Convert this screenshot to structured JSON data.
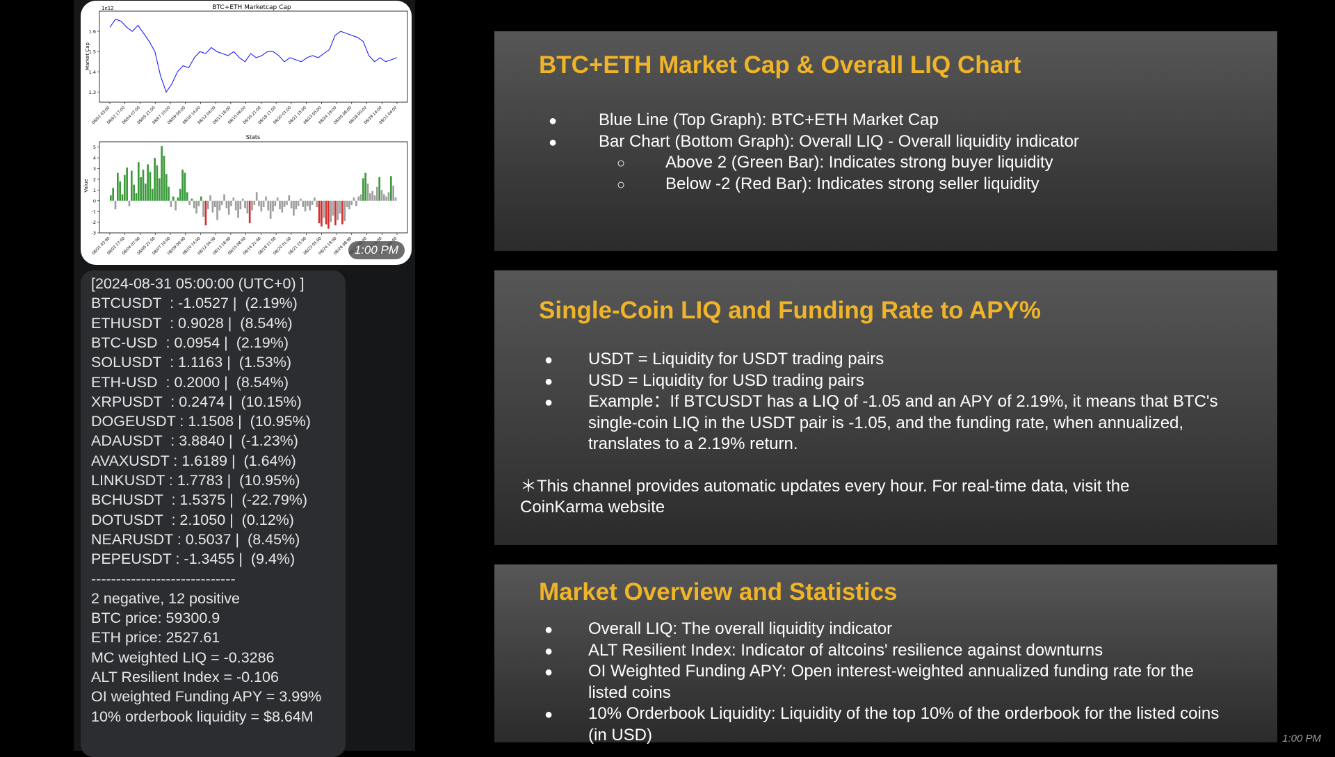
{
  "chart_image": {
    "timestamp": "1:00 PM",
    "chart_data": [
      {
        "type": "line",
        "title": "BTC+ETH Marketcap Cap",
        "ylabel": "Market Cap",
        "y_exponent_label": "1e12",
        "yticks": [
          "1.3",
          "1.4",
          "1.5",
          "1.6"
        ],
        "ylim": [
          1.25,
          1.7
        ],
        "xticks": [
          "08/01 03:00",
          "08/02 17:00",
          "08/04 07:00",
          "08/05 21:00",
          "08/07 10:00",
          "08/09 00:00",
          "08/10 14:00",
          "08/12 04:00",
          "08/13 18:00",
          "08/15 08:00",
          "08/16 21:00",
          "08/18 11:00",
          "08/20 01:00",
          "08/21 15:00",
          "08/23 05:00",
          "08/24 19:00",
          "08/26 08:00",
          "08/28 00:00",
          "08/29 14:00",
          "08/31 04:00"
        ],
        "series": [
          {
            "values": [
              1.62,
              1.66,
              1.65,
              1.62,
              1.6,
              1.63,
              1.59,
              1.55,
              1.5,
              1.38,
              1.3,
              1.34,
              1.4,
              1.43,
              1.42,
              1.47,
              1.5,
              1.49,
              1.52,
              1.5,
              1.49,
              1.48,
              1.5,
              1.47,
              1.45,
              1.49,
              1.47,
              1.48,
              1.5,
              1.5,
              1.48,
              1.45,
              1.47,
              1.46,
              1.45,
              1.47,
              1.48,
              1.47,
              1.49,
              1.51,
              1.58,
              1.6,
              1.59,
              1.58,
              1.57,
              1.55,
              1.48,
              1.45,
              1.47,
              1.45,
              1.46,
              1.47
            ]
          }
        ],
        "color": "#1f1fff"
      },
      {
        "type": "bar",
        "title": "Stats",
        "ylabel": "Value",
        "yticks": [
          "-3",
          "-2",
          "-1",
          "0",
          "1",
          "2",
          "3",
          "4",
          "5"
        ],
        "ylim": [
          -3,
          5.5
        ],
        "xticks": [
          "08/01 03:00",
          "08/02 17:00",
          "08/04 07:00",
          "08/05 21:00",
          "08/07 10:00",
          "08/09 00:00",
          "08/10 14:00",
          "08/12 04:00",
          "08/13 18:00",
          "08/15 08:00",
          "08/16 21:00",
          "08/18 11:00",
          "08/20 01:00",
          "08/21 15:00",
          "08/23 05:00",
          "08/24 19:00",
          "08/26 08:00",
          "08/28 00:00",
          "08/29 14:00",
          "08/31 04:00"
        ],
        "values": [
          0.5,
          1.2,
          -0.8,
          2.6,
          1.8,
          0.6,
          2.4,
          3.1,
          -0.5,
          2.8,
          1.5,
          0.7,
          3.6,
          2.2,
          2.9,
          1.6,
          3.4,
          2.7,
          1.1,
          4.0,
          3.3,
          2.1,
          5.1,
          4.2,
          2.5,
          1.3,
          -0.6,
          0.4,
          -0.9,
          0.3,
          1.1,
          2.9,
          2.6,
          0.8,
          -0.4,
          0.2,
          -0.7,
          -1.2,
          -0.5,
          0.4,
          -1.5,
          -2.3,
          -0.8,
          0.5,
          -1.1,
          -0.6,
          -1.8,
          -0.9,
          -0.4,
          0.6,
          -0.7,
          -1.3,
          -0.5,
          0.3,
          -0.9,
          -1.6,
          -0.8,
          0.2,
          -0.7,
          -1.2,
          -2.1,
          -0.9,
          -0.4,
          0.8,
          -0.5,
          -1.0,
          -0.6,
          0.4,
          -0.9,
          -1.7,
          -1.0,
          -0.5,
          0.3,
          -0.8,
          -1.1,
          -0.6,
          -0.4,
          0.5,
          -0.7,
          -1.4,
          -0.8,
          -0.5,
          0.2,
          -0.6,
          -1.0,
          -0.5,
          -0.9,
          -0.4,
          0.3,
          -0.6,
          -2.1,
          -2.4,
          -1.6,
          -2.2,
          -2.6,
          -2.0,
          -1.4,
          -2.3,
          -1.8,
          -1.2,
          -2.2,
          -1.9,
          -0.6,
          -0.8,
          -0.4,
          0.3,
          -0.5,
          0.4,
          0.6,
          2.1,
          2.6,
          1.6,
          0.7,
          0.9,
          0.5,
          1.3,
          2.2,
          1.0,
          0.6,
          0.4,
          0.8,
          2.3,
          1.4,
          0.3
        ],
        "colors": {
          "positive_strong": "#3a9a3a",
          "negative_strong": "#d32f2f",
          "neutral": "#9e9e9e"
        }
      }
    ]
  },
  "message": {
    "lines": [
      "[2024-08-31 05:00:00 (UTC+0) ]",
      "BTCUSDT  : -1.0527 |  (2.19%)",
      "ETHUSDT  : 0.9028 |  (8.54%)",
      "BTC-USD  : 0.0954 |  (2.19%)",
      "SOLUSDT  : 1.1163 |  (1.53%)",
      "ETH-USD  : 0.2000 |  (8.54%)",
      "XRPUSDT  : 0.2474 |  (10.15%)",
      "DOGEUSDT : 1.1508 |  (10.95%)",
      "ADAUSDT  : 3.8840 |  (-1.23%)",
      "AVAXUSDT : 1.6189 |  (1.64%)",
      "LINKUSDT : 1.7783 |  (10.95%)",
      "BCHUSDT  : 1.5375 |  (-22.79%)",
      "DOTUSDT  : 2.1050 |  (0.12%)",
      "NEARUSDT : 0.5037 |  (8.45%)",
      "PEPEUSDT : -1.3455 |  (9.4%)",
      "-----------------------------",
      "2 negative, 12 positive",
      "BTC price: 59300.9",
      "ETH price: 2527.61",
      "MC weighted LIQ = -0.3286",
      "ALT Resilient Index = -0.106",
      "OI weighted Funding APY = 3.99%",
      "10% orderbook liquidity = $8.64M"
    ],
    "timestamp": "1:00 PM"
  },
  "panels": {
    "liq_chart": {
      "title": "BTC+ETH Market Cap  & Overall LIQ Chart",
      "bullets": [
        "Blue Line (Top Graph): BTC+ETH Market Cap",
        "Bar Chart (Bottom Graph): Overall LIQ - Overall liquidity indicator"
      ],
      "sub_bullets": [
        "Above 2 (Green Bar): Indicates strong buyer liquidity",
        "Below -2 (Red Bar): Indicates strong seller liquidity"
      ],
      "bullet_glyph": "●",
      "sub_bullet_glyph": "○"
    },
    "single_coin": {
      "title": "Single-Coin LIQ and Funding Rate to APY%",
      "bullets": [
        "USDT = Liquidity for USDT trading pairs",
        "USD =  Liquidity for USD trading pairs",
        "Example：If BTCUSDT has a LIQ of -1.05 and an APY of 2.19%, it means that BTC's single-coin LIQ in the USDT pair is -1.05, and the funding rate, when annualized, translates to a 2.19% return."
      ],
      "note": "＊This channel provides automatic updates every hour. For real-time data, visit the CoinKarma website",
      "bullet_glyph": "●"
    },
    "market_overview": {
      "title": "Market Overview and Statistics",
      "bullets": [
        "Overall LIQ: The overall liquidity indicator",
        "ALT Resilient Index: Indicator of altcoins' resilience against downturns",
        "OI Weighted Funding APY: Open interest-weighted annualized funding rate for the listed coins",
        "10% Orderbook Liquidity: Liquidity of the top 10% of the orderbook for the listed coins (in USD)"
      ],
      "bullet_glyph": "●"
    }
  }
}
